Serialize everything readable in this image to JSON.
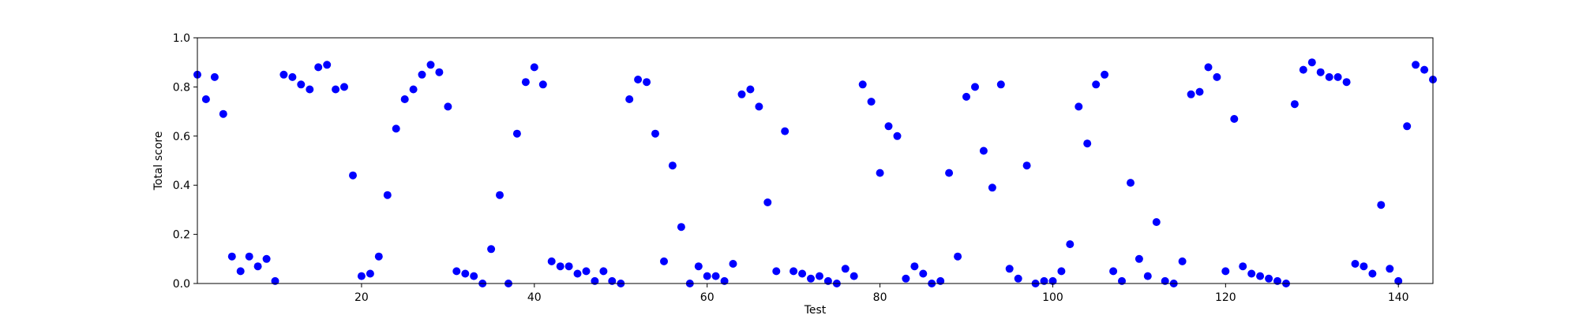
{
  "chart_data": {
    "type": "scatter",
    "title": "",
    "xlabel": "Test",
    "ylabel": "Total score",
    "xlim": [
      1,
      144
    ],
    "ylim": [
      0.0,
      1.0
    ],
    "xticks": [
      20,
      40,
      60,
      80,
      100,
      120,
      140
    ],
    "yticks": [
      "0.0",
      "0.2",
      "0.4",
      "0.6",
      "0.8",
      "1.0"
    ],
    "grid": false,
    "marker_color": "#0000ff",
    "x": [
      1,
      2,
      3,
      4,
      5,
      6,
      7,
      8,
      9,
      10,
      11,
      12,
      13,
      14,
      15,
      16,
      17,
      18,
      19,
      20,
      21,
      22,
      23,
      24,
      25,
      26,
      27,
      28,
      29,
      30,
      31,
      32,
      33,
      34,
      35,
      36,
      37,
      38,
      39,
      40,
      41,
      42,
      43,
      44,
      45,
      46,
      47,
      48,
      49,
      50,
      51,
      52,
      53,
      54,
      55,
      56,
      57,
      58,
      59,
      60,
      61,
      62,
      63,
      64,
      65,
      66,
      67,
      68,
      69,
      70,
      71,
      72,
      73,
      74,
      75,
      76,
      77,
      78,
      79,
      80,
      81,
      82,
      83,
      84,
      85,
      86,
      87,
      88,
      89,
      90,
      91,
      92,
      93,
      94,
      95,
      96,
      97,
      98,
      99,
      100,
      101,
      102,
      103,
      104,
      105,
      106,
      107,
      108,
      109,
      110,
      111,
      112,
      113,
      114,
      115,
      116,
      117,
      118,
      119,
      120,
      121,
      122,
      123,
      124,
      125,
      126,
      127,
      128,
      129,
      130,
      131,
      132,
      133,
      134,
      135,
      136,
      137,
      138,
      139,
      140,
      141,
      142,
      143,
      144
    ],
    "y": [
      0.85,
      0.75,
      0.84,
      0.69,
      0.11,
      0.05,
      0.11,
      0.07,
      0.1,
      0.01,
      0.85,
      0.84,
      0.81,
      0.79,
      0.88,
      0.89,
      0.79,
      0.8,
      0.44,
      0.03,
      0.04,
      0.11,
      0.36,
      0.63,
      0.75,
      0.79,
      0.85,
      0.89,
      0.86,
      0.72,
      0.05,
      0.04,
      0.03,
      0.0,
      0.14,
      0.36,
      0.0,
      0.61,
      0.82,
      0.88,
      0.81,
      0.09,
      0.07,
      0.07,
      0.04,
      0.05,
      0.01,
      0.05,
      0.01,
      0.0,
      0.75,
      0.83,
      0.82,
      0.61,
      0.09,
      0.48,
      0.23,
      0.0,
      0.07,
      0.03,
      0.03,
      0.01,
      0.08,
      0.77,
      0.79,
      0.72,
      0.33,
      0.05,
      0.62,
      0.05,
      0.04,
      0.02,
      0.03,
      0.01,
      0.0,
      0.06,
      0.03,
      0.81,
      0.74,
      0.45,
      0.64,
      0.6,
      0.02,
      0.07,
      0.04,
      0.0,
      0.01,
      0.45,
      0.11,
      0.76,
      0.8,
      0.54,
      0.39,
      0.81,
      0.06,
      0.02,
      0.48,
      0.0,
      0.01,
      0.01,
      0.05,
      0.16,
      0.72,
      0.57,
      0.81,
      0.85,
      0.05,
      0.01,
      0.41,
      0.1,
      0.03,
      0.25,
      0.01,
      0.0,
      0.09,
      0.77,
      0.78,
      0.88,
      0.84,
      0.05,
      0.67,
      0.07,
      0.04,
      0.03,
      0.02,
      0.01,
      0.0,
      0.73,
      0.87,
      0.9,
      0.86,
      0.84,
      0.84,
      0.82,
      0.08,
      0.07,
      0.04,
      0.32,
      0.06,
      0.01,
      0.64,
      0.89,
      0.87,
      0.83
    ]
  }
}
